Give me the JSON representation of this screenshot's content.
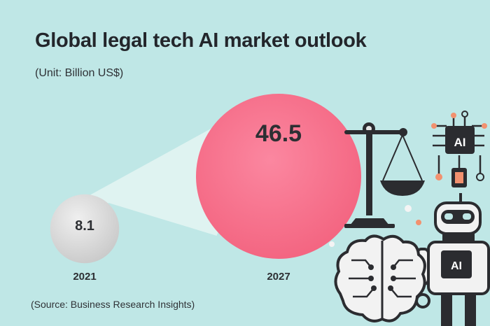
{
  "title": "Global legal tech AI market outlook",
  "unit": "(Unit: Billion US$)",
  "source": "(Source: Business Research Insights)",
  "colors": {
    "background": "#bfe7e6",
    "small_bubble": "#d7d7d7",
    "large_bubble": "#f76d8c",
    "beam": "#e4f4f2"
  },
  "icons": [
    "scales-of-justice-icon",
    "ai-chip-icon",
    "robot-icon",
    "brain-circuit-icon"
  ],
  "chart_data": {
    "type": "bubble",
    "title": "Global legal tech AI market outlook",
    "unit": "Billion US$",
    "categories": [
      "2021",
      "2027"
    ],
    "values": [
      8.1,
      46.5
    ],
    "value_labels": [
      "8.1",
      "46.5"
    ],
    "source": "(Source: Business Research Insights)"
  }
}
